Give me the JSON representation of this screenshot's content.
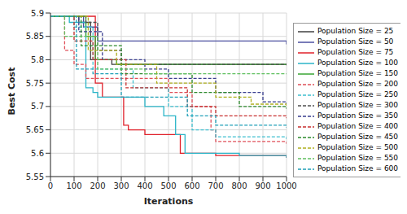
{
  "chart_data": {
    "type": "line",
    "xlabel": "Iterations",
    "ylabel": "Best Cost",
    "xlim": [
      0,
      1000
    ],
    "xticks": [
      0,
      100,
      200,
      300,
      400,
      500,
      600,
      700,
      800,
      900,
      1000
    ],
    "ylim": [
      5.55,
      5.9
    ],
    "yticks": [
      5.55,
      5.6,
      5.65,
      5.7,
      5.75,
      5.8,
      5.85,
      5.9
    ],
    "grid": true,
    "series": [
      {
        "name": "Population Size = 25",
        "color": "#404040",
        "line_style": "solid",
        "x": [
          0,
          120,
          170,
          260,
          1000
        ],
        "values": [
          5.893,
          5.88,
          5.8,
          5.79,
          5.788
        ]
      },
      {
        "name": "Population Size = 50",
        "color": "#4b4fa0",
        "line_style": "solid",
        "x": [
          0,
          140,
          200,
          1000
        ],
        "values": [
          5.893,
          5.87,
          5.84,
          5.833
        ]
      },
      {
        "name": "Population Size = 75",
        "color": "#e0202a",
        "line_style": "solid",
        "x": [
          0,
          190,
          220,
          310,
          330,
          400,
          550,
          700,
          1000
        ],
        "values": [
          5.893,
          5.75,
          5.72,
          5.66,
          5.65,
          5.64,
          5.6,
          5.595,
          5.59
        ]
      },
      {
        "name": "Population Size = 100",
        "color": "#2bb5c8",
        "line_style": "solid",
        "x": [
          0,
          80,
          150,
          180,
          200,
          400,
          480,
          530,
          570,
          800,
          1000
        ],
        "values": [
          5.893,
          5.88,
          5.74,
          5.73,
          5.72,
          5.7,
          5.68,
          5.64,
          5.6,
          5.595,
          5.59
        ]
      },
      {
        "name": "Population Size = 150",
        "color": "#3aa635",
        "line_style": "solid",
        "x": [
          0,
          150,
          190,
          280,
          1000
        ],
        "values": [
          5.893,
          5.85,
          5.8,
          5.79,
          5.79
        ]
      },
      {
        "name": "Population Size = 200",
        "color": "#e0505a",
        "line_style": "dashed",
        "x": [
          0,
          60,
          100,
          150,
          500,
          600,
          680,
          700,
          1000
        ],
        "values": [
          5.893,
          5.82,
          5.79,
          5.76,
          5.73,
          5.7,
          5.65,
          5.625,
          5.62
        ]
      },
      {
        "name": "Population Size = 250",
        "color": "#40c0d0",
        "line_style": "dashed",
        "x": [
          0,
          100,
          180,
          350,
          500,
          600,
          700,
          1000
        ],
        "values": [
          5.893,
          5.87,
          5.78,
          5.74,
          5.7,
          5.65,
          5.635,
          5.63
        ]
      },
      {
        "name": "Population Size = 300",
        "color": "#505050",
        "line_style": "dashed",
        "x": [
          0,
          150,
          200,
          300,
          1000
        ],
        "values": [
          5.893,
          5.88,
          5.82,
          5.79,
          5.79
        ]
      },
      {
        "name": "Population Size = 350",
        "color": "#3a3f8f",
        "line_style": "dashed",
        "x": [
          0,
          120,
          220,
          400,
          500,
          700,
          900,
          1000
        ],
        "values": [
          5.893,
          5.86,
          5.8,
          5.78,
          5.76,
          5.73,
          5.71,
          5.705
        ]
      },
      {
        "name": "Population Size = 400",
        "color": "#c83030",
        "line_style": "dashed",
        "x": [
          0,
          100,
          180,
          320,
          580,
          700,
          1000
        ],
        "values": [
          5.893,
          5.84,
          5.8,
          5.74,
          5.7,
          5.68,
          5.675
        ]
      },
      {
        "name": "Population Size = 450",
        "color": "#2e8b2e",
        "line_style": "dashed",
        "x": [
          0,
          130,
          300,
          600,
          800,
          1000
        ],
        "values": [
          5.893,
          5.83,
          5.77,
          5.73,
          5.7,
          5.695
        ]
      },
      {
        "name": "Population Size = 500",
        "color": "#b0b020",
        "line_style": "dashed",
        "x": [
          0,
          160,
          280,
          450,
          700,
          850,
          1000
        ],
        "values": [
          5.893,
          5.82,
          5.79,
          5.75,
          5.72,
          5.705,
          5.7
        ]
      },
      {
        "name": "Population Size = 550",
        "color": "#60c060",
        "line_style": "dashed",
        "x": [
          0,
          60,
          200,
          400,
          1000
        ],
        "values": [
          5.893,
          5.85,
          5.78,
          5.77,
          5.77
        ]
      },
      {
        "name": "Population Size = 600",
        "color": "#20a0b8",
        "line_style": "dashed",
        "x": [
          0,
          110,
          180,
          300,
          580,
          700,
          1000
        ],
        "values": [
          5.893,
          5.78,
          5.77,
          5.72,
          5.68,
          5.66,
          5.655
        ]
      }
    ]
  }
}
